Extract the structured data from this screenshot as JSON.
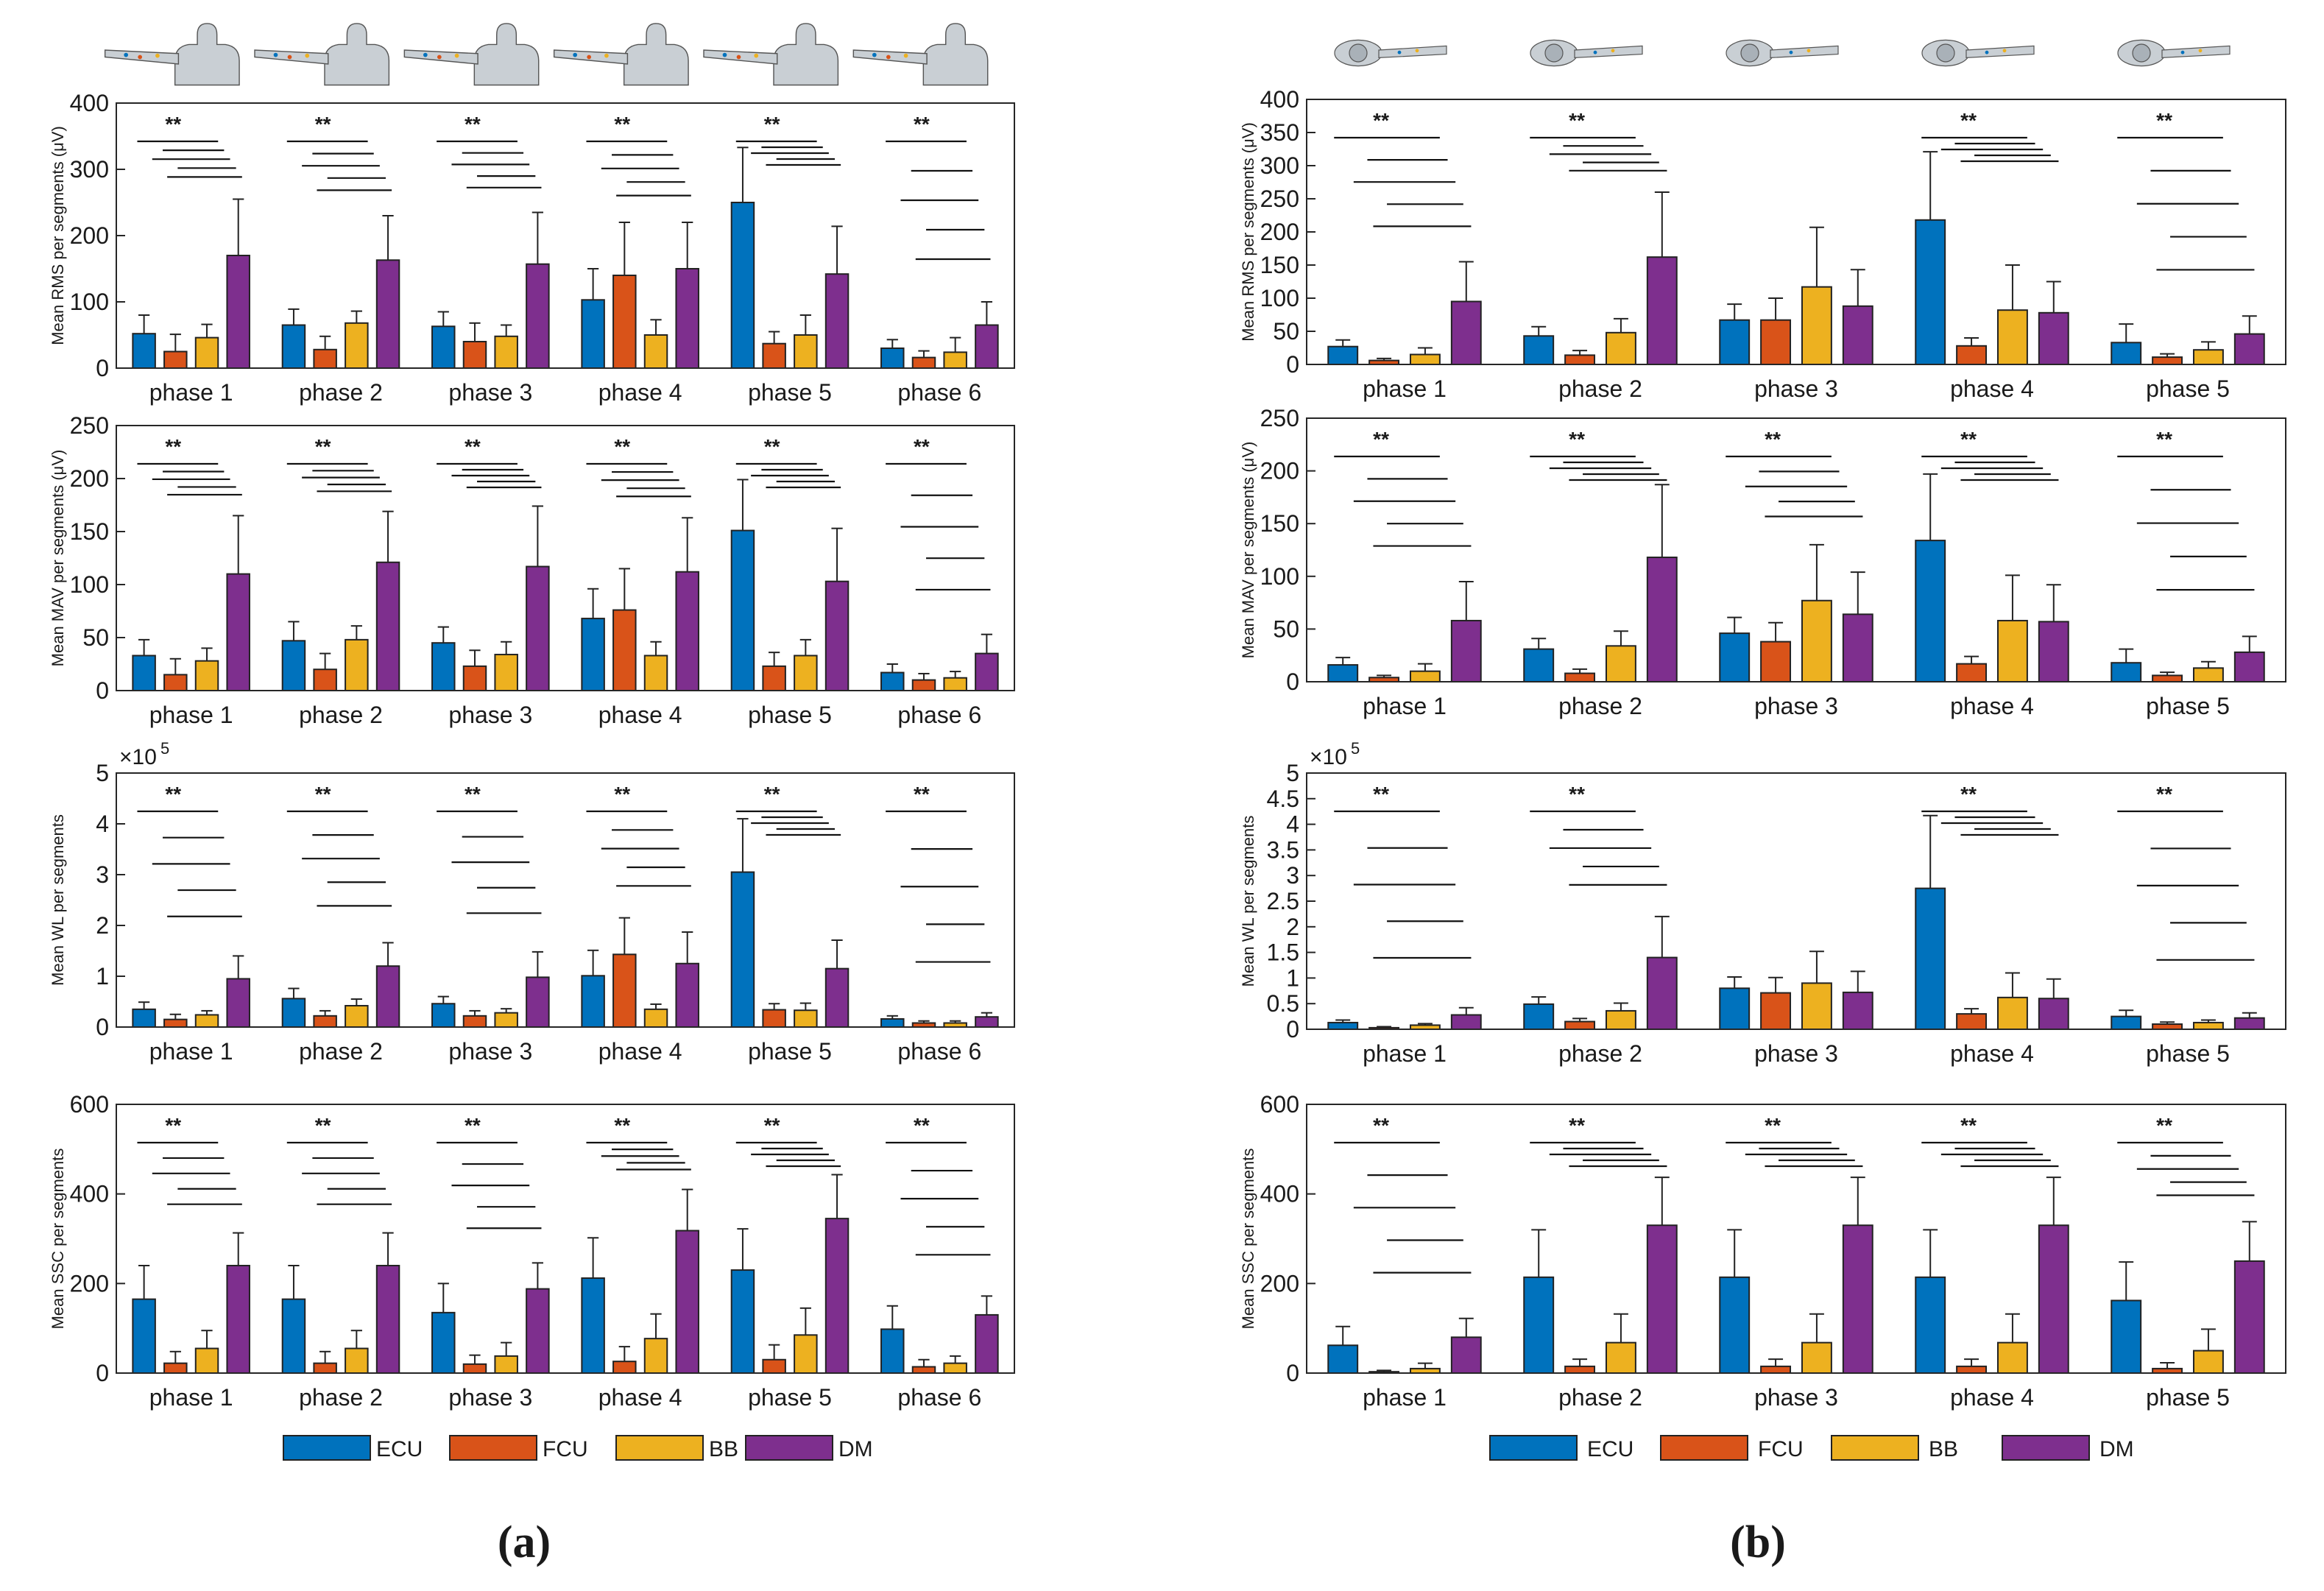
{
  "colors": {
    "ECU": "#0072BD",
    "FCU": "#D95319",
    "BB": "#EDB120",
    "DM": "#7E2F8E",
    "axis": "#262626",
    "icon": "#c9cfd4"
  },
  "legend": [
    "ECU",
    "FCU",
    "BB",
    "DM"
  ],
  "panel_labels": {
    "a": "(a)",
    "b": "(b)"
  },
  "exponent_label": "×10",
  "exponent_power": "5",
  "chart_data": [
    {
      "id": "a-rms",
      "type": "bar",
      "ylabel": "Mean RMS per segments (μV)",
      "ylim": [
        0,
        400
      ],
      "yticks": [
        0,
        100,
        200,
        300,
        400
      ],
      "categories": [
        "phase 1",
        "phase 2",
        "phase 3",
        "phase 4",
        "phase 5",
        "phase 6"
      ],
      "series": [
        {
          "name": "ECU",
          "values": [
            52,
            65,
            63,
            103,
            250,
            30
          ],
          "err": [
            28,
            24,
            22,
            47,
            83,
            13
          ]
        },
        {
          "name": "FCU",
          "values": [
            25,
            28,
            40,
            140,
            37,
            16
          ],
          "err": [
            26,
            20,
            28,
            80,
            18,
            10
          ]
        },
        {
          "name": "BB",
          "values": [
            46,
            68,
            48,
            50,
            50,
            24
          ],
          "err": [
            20,
            18,
            17,
            23,
            30,
            22
          ]
        },
        {
          "name": "DM",
          "values": [
            170,
            163,
            157,
            150,
            142,
            65
          ],
          "err": [
            85,
            67,
            78,
            70,
            72,
            35
          ]
        }
      ],
      "significance": [
        "**",
        "**",
        "**",
        "**",
        "**",
        "**"
      ]
    },
    {
      "id": "a-mav",
      "type": "bar",
      "ylabel": "Mean MAV per segments (μV)",
      "ylim": [
        0,
        250
      ],
      "yticks": [
        0,
        50,
        100,
        150,
        200,
        250
      ],
      "categories": [
        "phase 1",
        "phase 2",
        "phase 3",
        "phase 4",
        "phase 5",
        "phase 6"
      ],
      "series": [
        {
          "name": "ECU",
          "values": [
            33,
            47,
            45,
            68,
            151,
            17
          ],
          "err": [
            15,
            18,
            15,
            28,
            48,
            8
          ]
        },
        {
          "name": "FCU",
          "values": [
            15,
            20,
            23,
            76,
            23,
            10
          ],
          "err": [
            15,
            15,
            15,
            39,
            13,
            6
          ]
        },
        {
          "name": "BB",
          "values": [
            28,
            48,
            34,
            33,
            33,
            12
          ],
          "err": [
            12,
            13,
            12,
            13,
            15,
            6
          ]
        },
        {
          "name": "DM",
          "values": [
            110,
            121,
            117,
            112,
            103,
            35
          ],
          "err": [
            55,
            48,
            57,
            51,
            50,
            18
          ]
        }
      ],
      "significance": [
        "**",
        "**",
        "**",
        "**",
        "**",
        "**"
      ]
    },
    {
      "id": "a-wl",
      "type": "bar",
      "ylabel": "Mean WL per segments",
      "ylim": [
        0,
        5
      ],
      "yticks": [
        0,
        1,
        2,
        3,
        4,
        5
      ],
      "exponent": 5,
      "categories": [
        "phase 1",
        "phase 2",
        "phase 3",
        "phase 4",
        "phase 5",
        "phase 6"
      ],
      "series": [
        {
          "name": "ECU",
          "values": [
            0.35,
            0.56,
            0.46,
            1.01,
            3.05,
            0.16
          ],
          "err": [
            0.14,
            0.2,
            0.14,
            0.5,
            1.05,
            0.06
          ]
        },
        {
          "name": "FCU",
          "values": [
            0.15,
            0.22,
            0.22,
            1.43,
            0.34,
            0.08
          ],
          "err": [
            0.1,
            0.1,
            0.1,
            0.72,
            0.12,
            0.04
          ]
        },
        {
          "name": "BB",
          "values": [
            0.24,
            0.42,
            0.28,
            0.35,
            0.33,
            0.08
          ],
          "err": [
            0.08,
            0.13,
            0.08,
            0.1,
            0.14,
            0.04
          ]
        },
        {
          "name": "DM",
          "values": [
            0.95,
            1.2,
            0.98,
            1.25,
            1.15,
            0.2
          ],
          "err": [
            0.45,
            0.46,
            0.5,
            0.62,
            0.56,
            0.08
          ]
        }
      ],
      "significance": [
        "**",
        "**",
        "**",
        "**",
        "**",
        "**"
      ]
    },
    {
      "id": "a-ssc",
      "type": "bar",
      "ylabel": "Mean SSC per segments",
      "ylim": [
        0,
        600
      ],
      "yticks": [
        0,
        200,
        400,
        600
      ],
      "categories": [
        "phase 1",
        "phase 2",
        "phase 3",
        "phase 4",
        "phase 5",
        "phase 6"
      ],
      "series": [
        {
          "name": "ECU",
          "values": [
            165,
            165,
            135,
            212,
            230,
            98
          ],
          "err": [
            75,
            75,
            65,
            90,
            92,
            52
          ]
        },
        {
          "name": "FCU",
          "values": [
            22,
            22,
            20,
            26,
            30,
            14
          ],
          "err": [
            26,
            26,
            20,
            33,
            33,
            16
          ]
        },
        {
          "name": "BB",
          "values": [
            55,
            55,
            38,
            77,
            85,
            22
          ],
          "err": [
            40,
            40,
            30,
            55,
            60,
            16
          ]
        },
        {
          "name": "DM",
          "values": [
            240,
            240,
            188,
            318,
            345,
            130
          ],
          "err": [
            73,
            73,
            58,
            92,
            98,
            42
          ]
        }
      ],
      "significance": [
        "**",
        "**",
        "**",
        "**",
        "**",
        "**"
      ]
    },
    {
      "id": "b-rms",
      "type": "bar",
      "ylabel": "Mean RMS per segments (μV)",
      "ylim": [
        0,
        400
      ],
      "yticks": [
        0,
        50,
        100,
        150,
        200,
        250,
        300,
        350,
        400
      ],
      "categories": [
        "phase 1",
        "phase 2",
        "phase 3",
        "phase 4",
        "phase 5"
      ],
      "series": [
        {
          "name": "ECU",
          "values": [
            27,
            43,
            67,
            218,
            33
          ],
          "err": [
            10,
            14,
            24,
            103,
            28
          ]
        },
        {
          "name": "FCU",
          "values": [
            6,
            14,
            67,
            28,
            11
          ],
          "err": [
            3,
            7,
            33,
            12,
            5
          ]
        },
        {
          "name": "BB",
          "values": [
            15,
            48,
            117,
            82,
            22
          ],
          "err": [
            10,
            21,
            90,
            68,
            12
          ]
        },
        {
          "name": "DM",
          "values": [
            95,
            162,
            88,
            78,
            46
          ],
          "err": [
            60,
            98,
            55,
            47,
            27
          ]
        }
      ],
      "significance": [
        "**",
        "**",
        "",
        "**",
        "**"
      ]
    },
    {
      "id": "b-mav",
      "type": "bar",
      "ylabel": "Mean MAV per segments (μV)",
      "ylim": [
        0,
        250
      ],
      "yticks": [
        0,
        50,
        100,
        150,
        200,
        250
      ],
      "categories": [
        "phase 1",
        "phase 2",
        "phase 3",
        "phase 4",
        "phase 5"
      ],
      "series": [
        {
          "name": "ECU",
          "values": [
            16,
            31,
            46,
            134,
            18
          ],
          "err": [
            7,
            10,
            15,
            63,
            13
          ]
        },
        {
          "name": "FCU",
          "values": [
            4,
            8,
            38,
            17,
            6
          ],
          "err": [
            2,
            4,
            18,
            7,
            3
          ]
        },
        {
          "name": "BB",
          "values": [
            10,
            34,
            77,
            58,
            13
          ],
          "err": [
            7,
            14,
            53,
            43,
            6
          ]
        },
        {
          "name": "DM",
          "values": [
            58,
            118,
            64,
            57,
            28
          ],
          "err": [
            37,
            69,
            40,
            35,
            15
          ]
        }
      ],
      "significance": [
        "**",
        "**",
        "**",
        "**",
        "**"
      ]
    },
    {
      "id": "b-wl",
      "type": "bar",
      "ylabel": "Mean WL per segments",
      "ylim": [
        0,
        5
      ],
      "yticks": [
        0,
        0.5,
        1,
        1.5,
        2,
        2.5,
        3,
        3.5,
        4,
        4.5,
        5
      ],
      "exponent": 5,
      "categories": [
        "phase 1",
        "phase 2",
        "phase 3",
        "phase 4",
        "phase 5"
      ],
      "series": [
        {
          "name": "ECU",
          "values": [
            0.13,
            0.49,
            0.8,
            2.75,
            0.25
          ],
          "err": [
            0.05,
            0.14,
            0.22,
            1.42,
            0.12
          ]
        },
        {
          "name": "FCU",
          "values": [
            0.03,
            0.15,
            0.71,
            0.3,
            0.1
          ],
          "err": [
            0.02,
            0.06,
            0.3,
            0.1,
            0.04
          ]
        },
        {
          "name": "BB",
          "values": [
            0.08,
            0.36,
            0.9,
            0.62,
            0.13
          ],
          "err": [
            0.03,
            0.15,
            0.62,
            0.48,
            0.05
          ]
        },
        {
          "name": "DM",
          "values": [
            0.28,
            1.4,
            0.72,
            0.6,
            0.22
          ],
          "err": [
            0.14,
            0.8,
            0.41,
            0.38,
            0.1
          ]
        }
      ],
      "significance": [
        "**",
        "**",
        "",
        "**",
        "**"
      ]
    },
    {
      "id": "b-ssc",
      "type": "bar",
      "ylabel": "Mean SSC per segments",
      "ylim": [
        0,
        600
      ],
      "yticks": [
        0,
        200,
        400,
        600
      ],
      "categories": [
        "phase 1",
        "phase 2",
        "phase 3",
        "phase 4",
        "phase 5"
      ],
      "series": [
        {
          "name": "ECU",
          "values": [
            62,
            214,
            214,
            214,
            162
          ],
          "err": [
            42,
            106,
            106,
            106,
            86
          ]
        },
        {
          "name": "FCU",
          "values": [
            3,
            15,
            15,
            15,
            10
          ],
          "err": [
            3,
            16,
            16,
            16,
            13
          ]
        },
        {
          "name": "BB",
          "values": [
            10,
            68,
            68,
            68,
            50
          ],
          "err": [
            12,
            64,
            64,
            64,
            48
          ]
        },
        {
          "name": "DM",
          "values": [
            80,
            330,
            330,
            330,
            250
          ],
          "err": [
            42,
            107,
            107,
            107,
            88
          ]
        }
      ],
      "significance": [
        "**",
        "**",
        "**",
        "**",
        "**"
      ]
    }
  ]
}
